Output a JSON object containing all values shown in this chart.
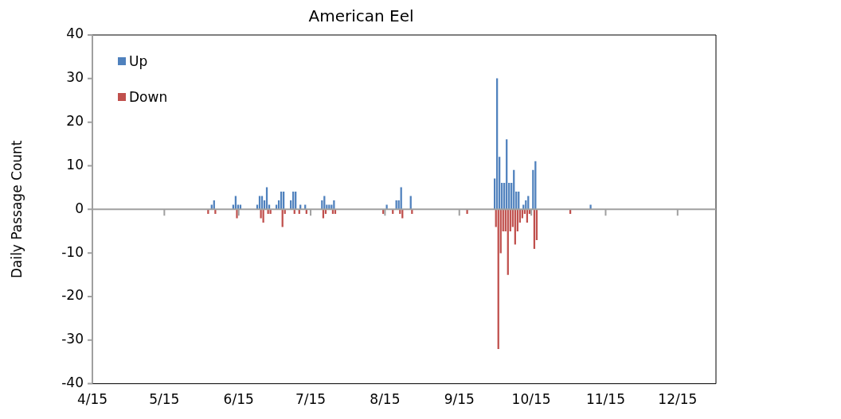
{
  "chart_data": {
    "type": "bar",
    "title": "American Eel",
    "ylabel": "Daily Passage Count",
    "xlim": [
      "--04-15",
      "--12-31"
    ],
    "xticks": [
      {
        "value": "--04-15",
        "label": "4/15"
      },
      {
        "value": "--05-15",
        "label": "5/15"
      },
      {
        "value": "--06-15",
        "label": "6/15"
      },
      {
        "value": "--07-15",
        "label": "7/15"
      },
      {
        "value": "--08-15",
        "label": "8/15"
      },
      {
        "value": "--09-15",
        "label": "9/15"
      },
      {
        "value": "--10-15",
        "label": "10/15"
      },
      {
        "value": "--11-15",
        "label": "11/15"
      },
      {
        "value": "--12-15",
        "label": "12/15"
      }
    ],
    "ylim": [
      -40,
      40
    ],
    "yticks": [
      -40,
      -30,
      -20,
      -10,
      0,
      10,
      20,
      30,
      40
    ],
    "legend": "top left",
    "series": [
      {
        "name": "Up",
        "color": "#4f81bd",
        "x": [
          "--06-04",
          "--06-05",
          "--06-13",
          "--06-14",
          "--06-15",
          "--06-16",
          "--06-23",
          "--06-24",
          "--06-25",
          "--06-26",
          "--06-27",
          "--06-28",
          "--07-01",
          "--07-02",
          "--07-03",
          "--07-04",
          "--07-07",
          "--07-08",
          "--07-09",
          "--07-11",
          "--07-13",
          "--07-20",
          "--07-21",
          "--07-22",
          "--07-23",
          "--07-24",
          "--07-25",
          "--08-16",
          "--08-20",
          "--08-21",
          "--08-22",
          "--08-26",
          "--09-30",
          "--10-01",
          "--10-02",
          "--10-03",
          "--10-04",
          "--10-05",
          "--10-06",
          "--10-07",
          "--10-08",
          "--10-09",
          "--10-10",
          "--10-12",
          "--10-13",
          "--10-14",
          "--10-16",
          "--10-17",
          "--11-09"
        ],
        "values": [
          1,
          2,
          1,
          3,
          1,
          1,
          1,
          3,
          3,
          2,
          5,
          1,
          1,
          2,
          4,
          4,
          2,
          4,
          4,
          1,
          1,
          2,
          3,
          1,
          1,
          1,
          2,
          1,
          2,
          2,
          5,
          3,
          7,
          30,
          12,
          6,
          6,
          16,
          6,
          6,
          9,
          4,
          4,
          1,
          2,
          3,
          9,
          11,
          1
        ]
      },
      {
        "name": "Down",
        "color": "#c0504d",
        "x": [
          "--06-02",
          "--06-05",
          "--06-14",
          "--06-24",
          "--06-25",
          "--06-27",
          "--06-28",
          "--07-03",
          "--07-04",
          "--07-08",
          "--07-10",
          "--07-13",
          "--07-20",
          "--07-21",
          "--07-24",
          "--07-25",
          "--08-14",
          "--08-18",
          "--08-21",
          "--08-22",
          "--08-26",
          "--09-18",
          "--09-30",
          "--10-01",
          "--10-02",
          "--10-03",
          "--10-04",
          "--10-05",
          "--10-06",
          "--10-07",
          "--10-08",
          "--10-09",
          "--10-10",
          "--10-11",
          "--10-12",
          "--10-13",
          "--10-14",
          "--10-16",
          "--10-17",
          "--10-31"
        ],
        "values": [
          -1,
          -1,
          -2,
          -2,
          -3,
          -1,
          -1,
          -4,
          -1,
          -1,
          -1,
          -1,
          -2,
          -1,
          -1,
          -1,
          -1,
          -1,
          -1,
          -2,
          -1,
          -1,
          -4,
          -32,
          -10,
          -5,
          -5,
          -15,
          -5,
          -4,
          -8,
          -5,
          -3,
          -2,
          -1,
          -3,
          -1,
          -9,
          -7,
          -1
        ]
      }
    ]
  }
}
